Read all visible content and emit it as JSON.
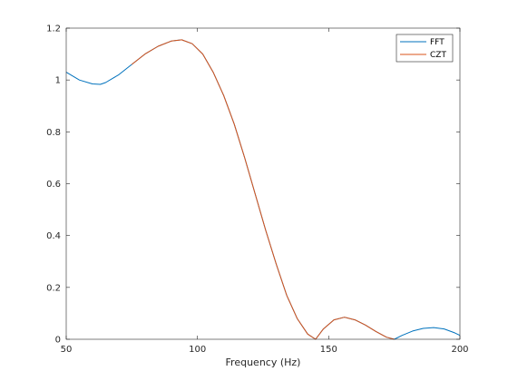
{
  "chart_data": {
    "type": "line",
    "title": "",
    "xlabel": "Frequency (Hz)",
    "ylabel": "",
    "xlim": [
      50,
      200
    ],
    "ylim": [
      0,
      1.2
    ],
    "xticks": [
      50,
      100,
      150,
      200
    ],
    "xtick_labels": [
      "50",
      "100",
      "150",
      "200"
    ],
    "yticks": [
      0,
      0.2,
      0.4,
      0.6,
      0.8,
      1,
      1.2
    ],
    "ytick_labels": [
      "0",
      "0.2",
      "0.4",
      "0.6",
      "0.8",
      "1",
      "1.2"
    ],
    "grid": false,
    "legend_position": "top-right",
    "series": [
      {
        "name": "FFT",
        "color": "#0072BD",
        "x": [
          50,
          55,
          60,
          63,
          65,
          70,
          75,
          80,
          85,
          90,
          94,
          98,
          102,
          106,
          110,
          114,
          118,
          122,
          126,
          130,
          134,
          138,
          142,
          145,
          148,
          152,
          156,
          160,
          164,
          168,
          172,
          175,
          178,
          182,
          186,
          190,
          194,
          198,
          200
        ],
        "y": [
          1.03,
          1.0,
          0.985,
          0.983,
          0.99,
          1.02,
          1.06,
          1.1,
          1.13,
          1.15,
          1.155,
          1.14,
          1.1,
          1.03,
          0.94,
          0.83,
          0.7,
          0.56,
          0.42,
          0.29,
          0.17,
          0.08,
          0.02,
          0.0,
          0.04,
          0.075,
          0.085,
          0.075,
          0.055,
          0.03,
          0.008,
          0.0,
          0.015,
          0.032,
          0.042,
          0.045,
          0.04,
          0.025,
          0.015
        ]
      },
      {
        "name": "CZT",
        "color": "#D95319",
        "x": [
          75,
          80,
          85,
          90,
          94,
          98,
          102,
          106,
          110,
          114,
          118,
          122,
          126,
          130,
          134,
          138,
          142,
          145,
          148,
          152,
          156,
          160,
          164,
          168,
          172,
          175
        ],
        "y": [
          1.06,
          1.1,
          1.13,
          1.15,
          1.155,
          1.14,
          1.1,
          1.03,
          0.94,
          0.83,
          0.7,
          0.56,
          0.42,
          0.29,
          0.17,
          0.08,
          0.02,
          0.0,
          0.04,
          0.075,
          0.085,
          0.075,
          0.055,
          0.03,
          0.008,
          0.0
        ]
      }
    ]
  }
}
